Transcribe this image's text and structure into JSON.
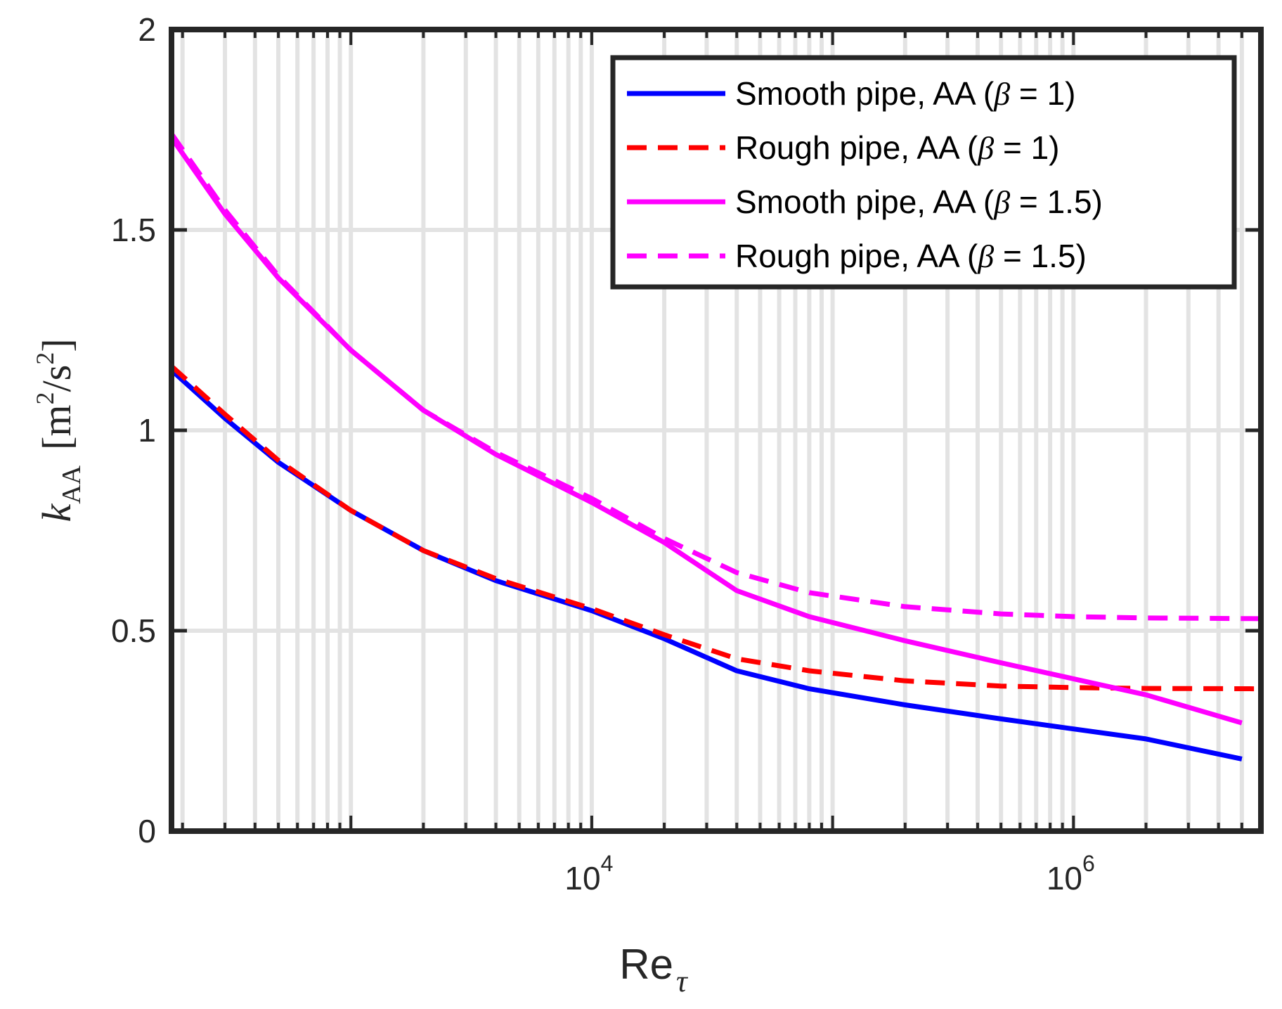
{
  "chart_data": {
    "type": "line",
    "title": "",
    "xlabel": {
      "base": "Re",
      "sub": "τ"
    },
    "ylabel": {
      "k": "k",
      "sub": "AA",
      "unit_open": "[m",
      "unit_sup1": "2",
      "unit_mid": "/s",
      "unit_sup2": "2",
      "unit_close": "]"
    },
    "x_scale": "log",
    "xlim": [
      180,
      6000000
    ],
    "ylim": [
      0,
      2
    ],
    "x_ticks": [
      {
        "value": 10000,
        "base": "10",
        "exp": "4"
      },
      {
        "value": 1000000,
        "base": "10",
        "exp": "6"
      }
    ],
    "y_ticks": [
      {
        "value": 0,
        "label": "0"
      },
      {
        "value": 0.5,
        "label": "0.5"
      },
      {
        "value": 1,
        "label": "1"
      },
      {
        "value": 1.5,
        "label": "1.5"
      },
      {
        "value": 2,
        "label": "2"
      }
    ],
    "grid": true,
    "legend_position": "top-right",
    "series": [
      {
        "name": "Smooth pipe, AA (β = 1)",
        "legend": {
          "pre": "Smooth pipe, AA (",
          "greek": "β",
          "post": " = 1)"
        },
        "color": "#0000FF",
        "dash": "solid",
        "points": [
          [
            180,
            1.15
          ],
          [
            300,
            1.03
          ],
          [
            500,
            0.92
          ],
          [
            1000,
            0.8
          ],
          [
            2000,
            0.7
          ],
          [
            4000,
            0.625
          ],
          [
            10000,
            0.55
          ],
          [
            20000,
            0.48
          ],
          [
            40000,
            0.4
          ],
          [
            80000,
            0.355
          ],
          [
            200000,
            0.315
          ],
          [
            500000,
            0.28
          ],
          [
            1000000,
            0.255
          ],
          [
            2000000,
            0.23
          ],
          [
            5000000,
            0.18
          ]
        ]
      },
      {
        "name": "Rough pipe, AA (β = 1)",
        "legend": {
          "pre": "Rough pipe, AA (",
          "greek": "β",
          "post": " = 1)"
        },
        "color": "#FF0000",
        "dash": "dashed",
        "points": [
          [
            180,
            1.16
          ],
          [
            300,
            1.04
          ],
          [
            500,
            0.925
          ],
          [
            1000,
            0.8
          ],
          [
            2000,
            0.7
          ],
          [
            4000,
            0.63
          ],
          [
            10000,
            0.555
          ],
          [
            20000,
            0.49
          ],
          [
            40000,
            0.43
          ],
          [
            80000,
            0.4
          ],
          [
            200000,
            0.375
          ],
          [
            500000,
            0.362
          ],
          [
            1000000,
            0.358
          ],
          [
            2000000,
            0.356
          ],
          [
            6000000,
            0.355
          ]
        ]
      },
      {
        "name": "Smooth pipe, AA (β = 1.5)",
        "legend": {
          "pre": "Smooth pipe, AA (",
          "greek": "β",
          "post": " = 1.5)"
        },
        "color": "#FF00FF",
        "dash": "solid",
        "points": [
          [
            180,
            1.73
          ],
          [
            300,
            1.54
          ],
          [
            500,
            1.38
          ],
          [
            1000,
            1.2
          ],
          [
            2000,
            1.05
          ],
          [
            4000,
            0.94
          ],
          [
            10000,
            0.82
          ],
          [
            20000,
            0.72
          ],
          [
            40000,
            0.6
          ],
          [
            80000,
            0.535
          ],
          [
            200000,
            0.475
          ],
          [
            500000,
            0.42
          ],
          [
            1000000,
            0.38
          ],
          [
            2000000,
            0.34
          ],
          [
            5000000,
            0.27
          ]
        ]
      },
      {
        "name": "Rough pipe, AA (β = 1.5)",
        "legend": {
          "pre": "Rough pipe, AA (",
          "greek": "β",
          "post": " = 1.5)"
        },
        "color": "#FF00FF",
        "dash": "dashed",
        "points": [
          [
            180,
            1.74
          ],
          [
            300,
            1.55
          ],
          [
            500,
            1.385
          ],
          [
            1000,
            1.2
          ],
          [
            2000,
            1.05
          ],
          [
            4000,
            0.945
          ],
          [
            10000,
            0.83
          ],
          [
            20000,
            0.73
          ],
          [
            40000,
            0.645
          ],
          [
            80000,
            0.595
          ],
          [
            200000,
            0.56
          ],
          [
            500000,
            0.542
          ],
          [
            1000000,
            0.535
          ],
          [
            2000000,
            0.532
          ],
          [
            6000000,
            0.53
          ]
        ]
      }
    ]
  }
}
